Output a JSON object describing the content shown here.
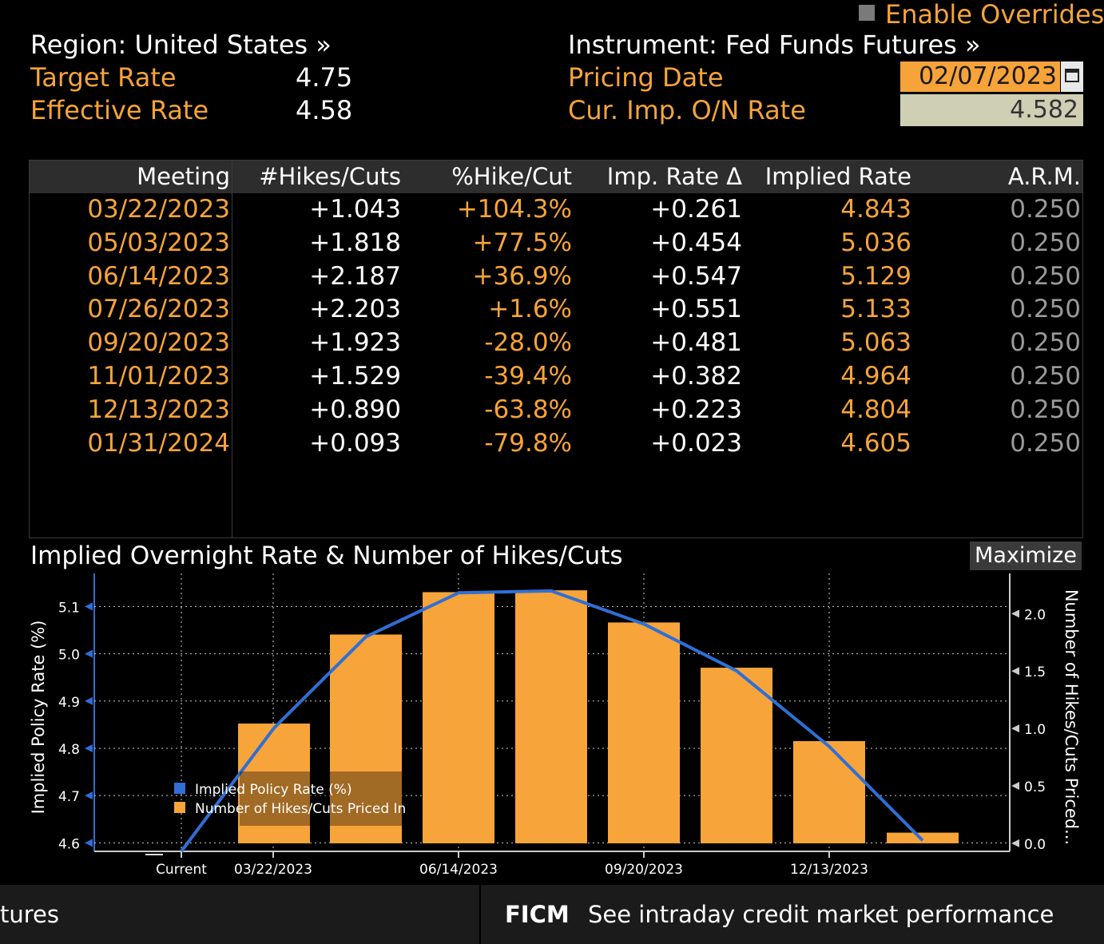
{
  "header": {
    "enable_overrides": "Enable Overrides",
    "region": "Region: United States »",
    "instrument": "Instrument: Fed Funds Futures »",
    "target_rate_label": "Target Rate",
    "target_rate_value": "4.75",
    "effective_rate_label": "Effective Rate",
    "effective_rate_value": "4.58",
    "pricing_date_label": "Pricing Date",
    "pricing_date_value": "02/07/2023",
    "cur_imp_label": "Cur. Imp. O/N Rate",
    "cur_imp_value": "4.582"
  },
  "table": {
    "columns": [
      "Meeting",
      "#Hikes/Cuts",
      "%Hike/Cut",
      "Imp. Rate Δ",
      "Implied Rate",
      "A.R.M."
    ],
    "rows": [
      [
        "03/22/2023",
        "+1.043",
        "+104.3%",
        "+0.261",
        "4.843",
        "0.250"
      ],
      [
        "05/03/2023",
        "+1.818",
        "+77.5%",
        "+0.454",
        "5.036",
        "0.250"
      ],
      [
        "06/14/2023",
        "+2.187",
        "+36.9%",
        "+0.547",
        "5.129",
        "0.250"
      ],
      [
        "07/26/2023",
        "+2.203",
        "+1.6%",
        "+0.551",
        "5.133",
        "0.250"
      ],
      [
        "09/20/2023",
        "+1.923",
        "-28.0%",
        "+0.481",
        "5.063",
        "0.250"
      ],
      [
        "11/01/2023",
        "+1.529",
        "-39.4%",
        "+0.382",
        "4.964",
        "0.250"
      ],
      [
        "12/13/2023",
        "+0.890",
        "-63.8%",
        "+0.223",
        "4.804",
        "0.250"
      ],
      [
        "01/31/2024",
        "+0.093",
        "-79.8%",
        "+0.023",
        "4.605",
        "0.250"
      ]
    ]
  },
  "chart": {
    "title": "Implied Overnight Rate & Number of Hikes/Cuts",
    "maximize_label": "Maximize"
  },
  "chart_data": {
    "type": "bar",
    "ylabel": "Implied Policy Rate (%)",
    "y2label": "Number of Hikes/Cuts Priced...",
    "ylim": [
      4.582,
      5.17
    ],
    "y2lim": [
      -0.07,
      2.35
    ],
    "yticks": [
      "4.6",
      "4.7",
      "4.8",
      "4.9",
      "5.0",
      "5.1"
    ],
    "y2ticks": [
      "0.0",
      "0.5",
      "1.0",
      "1.5",
      "2.0"
    ],
    "xticks": [
      "Current",
      "03/22/2023",
      "06/14/2023",
      "09/20/2023",
      "12/13/2023"
    ],
    "grid": true,
    "legend": "bottom-left",
    "current_rate": 4.582,
    "series": [
      {
        "name": "Implied Policy Rate (%)",
        "type": "line",
        "color": "#2f6fd6",
        "values": [
          4.843,
          5.036,
          5.129,
          5.133,
          5.063,
          4.964,
          4.804,
          4.605
        ]
      },
      {
        "name": "Number of Hikes/Cuts Priced In",
        "type": "bar",
        "color": "#f7a43a",
        "values": [
          1.043,
          1.818,
          2.187,
          2.203,
          1.923,
          1.529,
          0.89,
          0.093
        ]
      }
    ],
    "categories": [
      "03/22/2023",
      "05/03/2023",
      "06/14/2023",
      "07/26/2023",
      "09/20/2023",
      "11/01/2023",
      "12/13/2023",
      "01/31/2024"
    ]
  },
  "footer": {
    "left_text": "tures",
    "ficm_code": "FICM",
    "ficm_text": "See intraday credit market performance"
  }
}
